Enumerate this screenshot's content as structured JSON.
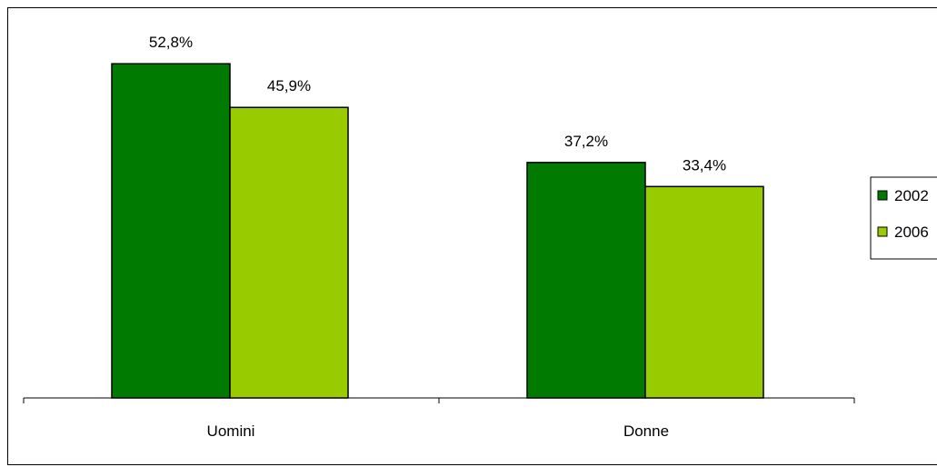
{
  "chart_data": {
    "type": "bar",
    "categories": [
      "Uomini",
      "Donne"
    ],
    "series": [
      {
        "name": "2002",
        "values": [
          52.8,
          37.2
        ],
        "labels": [
          "52,8%",
          "37,2%"
        ],
        "color": "#007A00"
      },
      {
        "name": "2006",
        "values": [
          45.9,
          33.4
        ],
        "labels": [
          "45,9%",
          "33,4%"
        ],
        "color": "#99CC00"
      }
    ],
    "title": "",
    "xlabel": "",
    "ylabel": "",
    "ylim": [
      0,
      60
    ],
    "grid": false,
    "legend_position": "right"
  }
}
